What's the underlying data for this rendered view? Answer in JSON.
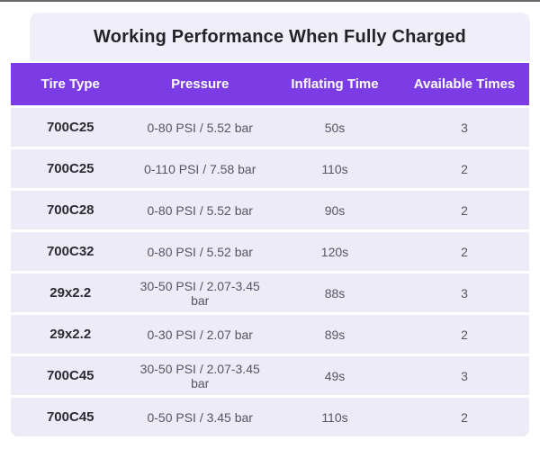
{
  "page": {
    "title": "Working Performance When Fully Charged"
  },
  "colors": {
    "accent_purple": "#7b3ce6",
    "title_panel_bg": "#f0eff9",
    "row_bg": "#ecebf7",
    "header_text": "#ffffff",
    "title_text": "#232327",
    "body_text": "#56565e",
    "tire_type_text": "#2b2b30",
    "top_line": "#6a6a6a"
  },
  "table": {
    "columns": [
      "Tire Type",
      "Pressure",
      "Inflating Time",
      "Available Times"
    ],
    "rows": [
      {
        "tire_type": "700C25",
        "pressure": "0-80 PSI / 5.52 bar",
        "inflating_time": "50s",
        "available_times": "3"
      },
      {
        "tire_type": "700C25",
        "pressure": "0-110 PSI / 7.58 bar",
        "inflating_time": "110s",
        "available_times": "2"
      },
      {
        "tire_type": "700C28",
        "pressure": "0-80 PSI / 5.52 bar",
        "inflating_time": "90s",
        "available_times": "2"
      },
      {
        "tire_type": "700C32",
        "pressure": "0-80 PSI / 5.52 bar",
        "inflating_time": "120s",
        "available_times": "2"
      },
      {
        "tire_type": "29x2.2",
        "pressure": "30-50 PSI / 2.07-3.45 bar",
        "inflating_time": "88s",
        "available_times": "3"
      },
      {
        "tire_type": "29x2.2",
        "pressure": "0-30 PSI / 2.07 bar",
        "inflating_time": "89s",
        "available_times": "2"
      },
      {
        "tire_type": "700C45",
        "pressure": "30-50 PSI / 2.07-3.45 bar",
        "inflating_time": "49s",
        "available_times": "3"
      },
      {
        "tire_type": "700C45",
        "pressure": "0-50 PSI / 3.45 bar",
        "inflating_time": "110s",
        "available_times": "2"
      }
    ]
  },
  "chart_data": {
    "type": "table",
    "title": "Working Performance When Fully Charged",
    "columns": [
      "Tire Type",
      "Pressure",
      "Inflating Time",
      "Available Times"
    ],
    "rows": [
      [
        "700C25",
        "0-80 PSI / 5.52 bar",
        "50s",
        3
      ],
      [
        "700C25",
        "0-110 PSI / 7.58 bar",
        "110s",
        2
      ],
      [
        "700C28",
        "0-80 PSI / 5.52 bar",
        "90s",
        2
      ],
      [
        "700C32",
        "0-80 PSI / 5.52 bar",
        "120s",
        2
      ],
      [
        "29x2.2",
        "30-50 PSI / 2.07-3.45 bar",
        "88s",
        3
      ],
      [
        "29x2.2",
        "0-30 PSI / 2.07 bar",
        "89s",
        2
      ],
      [
        "700C45",
        "30-50 PSI / 2.07-3.45 bar",
        "49s",
        3
      ],
      [
        "700C45",
        "0-50 PSI / 3.45 bar",
        "110s",
        2
      ]
    ]
  }
}
